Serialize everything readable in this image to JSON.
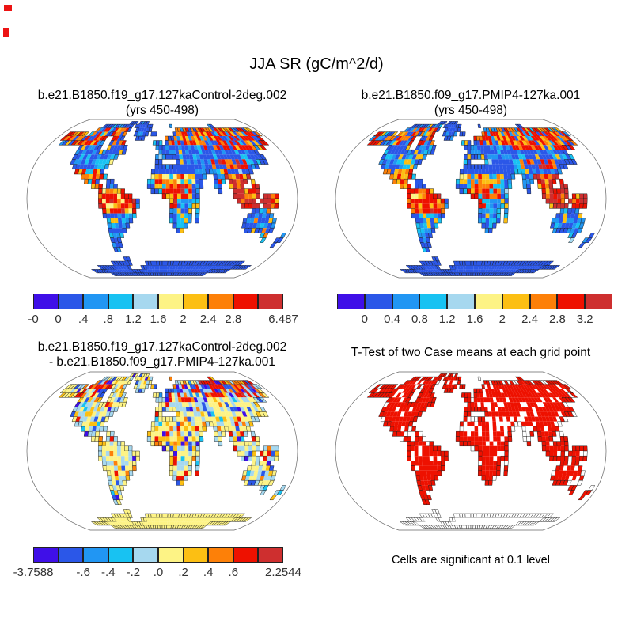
{
  "figure": {
    "title": "JJA SR (gC/m^2/d)",
    "background": "#ffffff"
  },
  "palette": {
    "levels_colors": [
      "#3f0fe8",
      "#2b57e8",
      "#2196f3",
      "#18c2f2",
      "#a6d8ef",
      "#fdf385",
      "#fcbf13",
      "#fd8008",
      "#ee1100",
      "#ce2f2f"
    ],
    "white": "#ffffff",
    "coastline": "#1a1a1a",
    "map_outline": "#666666",
    "tick_text": "#333333",
    "corner_mark": "#ec1313"
  },
  "panels": [
    {
      "title_line1": "b.e21.B1850.f19_g17.127kaControl-2deg.002",
      "title_line2": "(yrs 450-498)"
    },
    {
      "title_line1": "b.e21.B1850.f09_g17.PMIP4-127ka.001",
      "title_line2": "(yrs 450-498)"
    },
    {
      "title_line1": "b.e21.B1850.f19_g17.127kaControl-2deg.002",
      "title_line2": "- b.e21.B1850.f09_g17.PMIP4-127ka.001"
    },
    {
      "title_line1": "T-Test of two Case means at each grid point",
      "caption": "Cells are significant at 0.1 level"
    }
  ],
  "chart_data": [
    {
      "type": "heatmap",
      "projection": "robinson",
      "variable": "SR",
      "season": "JJA",
      "units": "gC/m^2/d",
      "title": "b.e21.B1850.f19_g17.127kaControl-2deg.002",
      "subtitle": "(yrs 450-498)",
      "colorbar": {
        "tick_labels": [
          {
            "text": "-0",
            "pos": 0
          },
          {
            "text": "0",
            "pos": 0.1
          },
          {
            "text": ".4",
            "pos": 0.2
          },
          {
            "text": ".8",
            "pos": 0.3
          },
          {
            "text": "1.2",
            "pos": 0.4
          },
          {
            "text": "1.6",
            "pos": 0.5
          },
          {
            "text": "2",
            "pos": 0.6
          },
          {
            "text": "2.4",
            "pos": 0.7
          },
          {
            "text": "2.8",
            "pos": 0.8
          },
          {
            "text": "6.487",
            "pos": 1
          }
        ]
      },
      "map_style": {
        "seed": 11,
        "base": {
          "1": 0.62,
          "2": 0.2,
          "3": 0.12,
          "4": 0.02,
          "6": 0.04
        },
        "regions": [
          {
            "r": [
              7,
              11
            ],
            "c": [
              9,
              23
            ],
            "w": {
              "1": 0.52,
              "2": 0.26,
              "3": 0.15,
              "6": 0.07
            }
          },
          {
            "r": [
              10,
              12
            ],
            "c": [
              16,
              21
            ],
            "w": {
              "3": 0.3,
              "6": 0.25,
              "2": 0.22,
              "1": 0.15,
              "5": 0.08
            }
          },
          {
            "r": [
              12,
              16
            ],
            "c": [
              12,
              20
            ],
            "w": {
              "7": 0.28,
              "8": 0.26,
              "6": 0.2,
              "1": 0.13,
              "3": 0.13
            }
          },
          {
            "r": [
              3,
              6
            ],
            "c": [
              2,
              23
            ],
            "w": {
              "8": 0.36,
              "7": 0.2,
              "6": 0.1,
              "1": 0.17,
              "2": 0.11,
              "3": 0.06
            }
          },
          {
            "r": [
              3,
              6
            ],
            "c": [
              37,
              48
            ],
            "w": {
              "8": 0.32,
              "7": 0.24,
              "6": 0.1,
              "1": 0.16,
              "2": 0.18
            }
          },
          {
            "r": [
              3,
              7
            ],
            "c": [
              49,
              71
            ],
            "w": {
              "8": 0.44,
              "7": 0.16,
              "6": 0.1,
              "1": 0.16,
              "2": 0.1,
              "3": 0.04
            }
          },
          {
            "r": [
              8,
              9
            ],
            "c": [
              45,
              66
            ],
            "w": {
              "1": 0.55,
              "2": 0.25,
              "3": 0.15,
              "6": 0.05
            }
          },
          {
            "r": [
              10,
              11
            ],
            "c": [
              50,
              59
            ],
            "w": {
              "8": 0.48,
              "7": 0.2,
              "9": 0.12,
              "1": 0.2
            }
          },
          {
            "r": [
              12,
              15
            ],
            "c": [
              48,
              53
            ],
            "w": {
              "2": 0.28,
              "3": 0.24,
              "1": 0.16,
              "8": 0.16,
              "6": 0.16
            }
          },
          {
            "r": [
              13,
              19
            ],
            "c": [
              53,
              67
            ],
            "w": {
              "9": 0.5,
              "8": 0.28,
              "7": 0.12,
              "6": 0.1
            }
          },
          {
            "r": [
              11,
              12
            ],
            "c": [
              33,
              46
            ],
            "w": {
              "1": 0.92,
              "2": 0.08
            }
          },
          {
            "r": [
              13,
              14
            ],
            "c": [
              32,
              44
            ],
            "w": {
              "6": 0.3,
              "5": 0.18,
              "7": 0.2,
              "3": 0.16,
              "8": 0.16
            }
          },
          {
            "r": [
              15,
              19
            ],
            "c": [
              35,
              43
            ],
            "w": {
              "8": 0.44,
              "9": 0.16,
              "7": 0.15,
              "6": 0.1,
              "3": 0.15
            }
          },
          {
            "r": [
              18,
              24
            ],
            "c": [
              40,
              46
            ],
            "w": {
              "3": 0.34,
              "2": 0.3,
              "1": 0.2,
              "6": 0.16
            }
          },
          {
            "r": [
              16,
              20
            ],
            "c": [
              19,
              28
            ],
            "w": {
              "8": 0.44,
              "7": 0.18,
              "6": 0.16,
              "5": 0.12,
              "9": 0.1
            }
          },
          {
            "r": [
              21,
              27
            ],
            "c": [
              20,
              28
            ],
            "w": {
              "1": 0.5,
              "2": 0.25,
              "3": 0.15,
              "6": 0.1
            }
          },
          {
            "r": [
              20,
              25
            ],
            "c": [
              56,
              66
            ],
            "w": {
              "1": 0.5,
              "2": 0.22,
              "3": 0.12,
              "6": 0.1,
              "7": 0.06
            }
          },
          {
            "r": [
              30,
              35
            ],
            "c": [
              0,
              71
            ],
            "w": {
              "1": 1
            }
          },
          {
            "r": [
              1,
              5
            ],
            "c": [
              24,
              33
            ],
            "w": {
              "1": 0.85,
              "2": 0.15
            }
          }
        ]
      }
    },
    {
      "type": "heatmap",
      "projection": "robinson",
      "variable": "SR",
      "season": "JJA",
      "units": "gC/m^2/d",
      "title": "b.e21.B1850.f09_g17.PMIP4-127ka.001",
      "subtitle": "(yrs 450-498)",
      "colorbar": {
        "tick_labels": [
          {
            "text": "0",
            "pos": 0.1
          },
          {
            "text": "0.4",
            "pos": 0.2
          },
          {
            "text": "0.8",
            "pos": 0.3
          },
          {
            "text": "1.2",
            "pos": 0.4
          },
          {
            "text": "1.6",
            "pos": 0.5
          },
          {
            "text": "2",
            "pos": 0.6
          },
          {
            "text": "2.4",
            "pos": 0.7
          },
          {
            "text": "2.8",
            "pos": 0.8
          },
          {
            "text": "3.2",
            "pos": 0.9
          }
        ]
      },
      "map_style": {
        "seed": 29,
        "base": {
          "1": 0.62,
          "2": 0.2,
          "3": 0.12,
          "4": 0.02,
          "6": 0.04
        },
        "regions": [
          {
            "r": [
              7,
              11
            ],
            "c": [
              9,
              23
            ],
            "w": {
              "1": 0.52,
              "2": 0.26,
              "3": 0.15,
              "6": 0.07
            }
          },
          {
            "r": [
              10,
              12
            ],
            "c": [
              16,
              21
            ],
            "w": {
              "3": 0.3,
              "6": 0.22,
              "2": 0.25,
              "1": 0.15,
              "5": 0.08
            }
          },
          {
            "r": [
              12,
              16
            ],
            "c": [
              12,
              20
            ],
            "w": {
              "7": 0.28,
              "8": 0.26,
              "6": 0.2,
              "1": 0.13,
              "3": 0.13
            }
          },
          {
            "r": [
              3,
              6
            ],
            "c": [
              2,
              23
            ],
            "w": {
              "8": 0.3,
              "7": 0.18,
              "6": 0.1,
              "1": 0.26,
              "2": 0.12,
              "3": 0.04
            }
          },
          {
            "r": [
              3,
              6
            ],
            "c": [
              37,
              48
            ],
            "w": {
              "8": 0.32,
              "7": 0.24,
              "6": 0.1,
              "1": 0.16,
              "2": 0.18
            }
          },
          {
            "r": [
              3,
              7
            ],
            "c": [
              49,
              71
            ],
            "w": {
              "8": 0.44,
              "7": 0.16,
              "6": 0.1,
              "1": 0.16,
              "2": 0.1,
              "3": 0.04
            }
          },
          {
            "r": [
              8,
              9
            ],
            "c": [
              45,
              66
            ],
            "w": {
              "1": 0.55,
              "2": 0.25,
              "3": 0.15,
              "6": 0.05
            }
          },
          {
            "r": [
              10,
              11
            ],
            "c": [
              50,
              59
            ],
            "w": {
              "8": 0.48,
              "7": 0.2,
              "9": 0.12,
              "1": 0.2
            }
          },
          {
            "r": [
              12,
              15
            ],
            "c": [
              48,
              53
            ],
            "w": {
              "2": 0.28,
              "3": 0.24,
              "1": 0.16,
              "8": 0.16,
              "6": 0.16
            }
          },
          {
            "r": [
              13,
              19
            ],
            "c": [
              53,
              67
            ],
            "w": {
              "9": 0.5,
              "8": 0.28,
              "7": 0.12,
              "6": 0.1
            }
          },
          {
            "r": [
              11,
              12
            ],
            "c": [
              33,
              46
            ],
            "w": {
              "1": 1
            }
          },
          {
            "r": [
              13,
              14
            ],
            "c": [
              32,
              44
            ],
            "w": {
              "6": 0.26,
              "3": 0.2,
              "2": 0.18,
              "5": 0.12,
              "7": 0.14,
              "8": 0.1
            }
          },
          {
            "r": [
              15,
              19
            ],
            "c": [
              35,
              43
            ],
            "w": {
              "8": 0.5,
              "9": 0.14,
              "7": 0.14,
              "6": 0.08,
              "3": 0.14
            }
          },
          {
            "r": [
              18,
              24
            ],
            "c": [
              40,
              46
            ],
            "w": {
              "3": 0.34,
              "2": 0.3,
              "1": 0.2,
              "6": 0.16
            }
          },
          {
            "r": [
              16,
              20
            ],
            "c": [
              19,
              28
            ],
            "w": {
              "8": 0.5,
              "7": 0.22,
              "6": 0.14,
              "5": 0.08,
              "9": 0.06
            }
          },
          {
            "r": [
              21,
              27
            ],
            "c": [
              20,
              28
            ],
            "w": {
              "1": 0.5,
              "2": 0.25,
              "3": 0.15,
              "6": 0.1
            }
          },
          {
            "r": [
              20,
              25
            ],
            "c": [
              56,
              66
            ],
            "w": {
              "1": 0.4,
              "2": 0.3,
              "3": 0.2,
              "6": 0.1
            }
          },
          {
            "r": [
              30,
              35
            ],
            "c": [
              0,
              71
            ],
            "w": {
              "1": 1
            }
          },
          {
            "r": [
              1,
              5
            ],
            "c": [
              24,
              33
            ],
            "w": {
              "1": 0.85,
              "2": 0.15
            }
          }
        ]
      }
    },
    {
      "type": "heatmap",
      "projection": "robinson",
      "variable": "SR difference",
      "season": "JJA",
      "units": "gC/m^2/d",
      "title": "b.e21.B1850.f19_g17.127kaControl-2deg.002",
      "subtitle": "- b.e21.B1850.f09_g17.PMIP4-127ka.001",
      "colorbar": {
        "tick_labels": [
          {
            "text": "-3.7588",
            "pos": 0
          },
          {
            "text": "-.6",
            "pos": 0.2
          },
          {
            "text": "-.4",
            "pos": 0.3
          },
          {
            "text": "-.2",
            "pos": 0.4
          },
          {
            "text": ".0",
            "pos": 0.5
          },
          {
            "text": ".2",
            "pos": 0.6
          },
          {
            "text": ".4",
            "pos": 0.7
          },
          {
            "text": ".6",
            "pos": 0.8
          },
          {
            "text": "2.2544",
            "pos": 1
          }
        ]
      },
      "map_style": {
        "seed": 3,
        "base": {
          "5": 0.4,
          "4": 0.3,
          "6": 0.07,
          "7": 0.06,
          "8": 0.05,
          "1": 0.05,
          "0": 0.04,
          "3": 0.03
        },
        "regions": [
          {
            "r": [
              2,
              6
            ],
            "c": [
              50,
              68
            ],
            "w": {
              "8": 0.32,
              "7": 0.18,
              "9": 0.06,
              "6": 0.1,
              "1": 0.12,
              "0": 0.08,
              "4": 0.14
            }
          },
          {
            "r": [
              3,
              6
            ],
            "c": [
              8,
              17
            ],
            "w": {
              "8": 0.28,
              "7": 0.14,
              "1": 0.16,
              "0": 0.1,
              "4": 0.16,
              "5": 0.16
            }
          },
          {
            "r": [
              3,
              7
            ],
            "c": [
              34,
              49
            ],
            "w": {
              "1": 0.2,
              "0": 0.1,
              "2": 0.12,
              "4": 0.22,
              "5": 0.16,
              "8": 0.12,
              "7": 0.08
            }
          },
          {
            "r": [
              13,
              16
            ],
            "c": [
              32,
              45
            ],
            "w": {
              "5": 0.3,
              "6": 0.16,
              "7": 0.14,
              "8": 0.1,
              "4": 0.14,
              "1": 0.08,
              "0": 0.08
            }
          },
          {
            "r": [
              30,
              35
            ],
            "c": [
              0,
              71
            ],
            "w": {
              "5": 1
            }
          }
        ]
      }
    },
    {
      "type": "heatmap",
      "projection": "robinson",
      "variable": "t-test significance",
      "title": "T-Test of two Case means at each grid point",
      "note": "Cells are significant at 0.1 level",
      "colorbar": null,
      "map_style": {
        "seed": 17,
        "base": {
          "8": 0.88,
          "w": 0.12
        },
        "regions": [
          {
            "r": [
              11,
              13
            ],
            "c": [
              32,
              47
            ],
            "w": {
              "8": 0.55,
              "w": 0.45
            }
          },
          {
            "r": [
              1,
              3
            ],
            "c": [
              0,
              71
            ],
            "w": {
              "8": 0.72,
              "w": 0.28
            }
          },
          {
            "r": [
              12,
              15
            ],
            "c": [
              49,
              53
            ],
            "w": {
              "8": 0.75,
              "w": 0.25
            }
          },
          {
            "r": [
              20,
              25
            ],
            "c": [
              56,
              66
            ],
            "w": {
              "8": 0.78,
              "w": 0.22
            }
          },
          {
            "r": [
              30,
              35
            ],
            "c": [
              0,
              71
            ],
            "w": {
              "w": 1
            }
          }
        ]
      }
    }
  ]
}
